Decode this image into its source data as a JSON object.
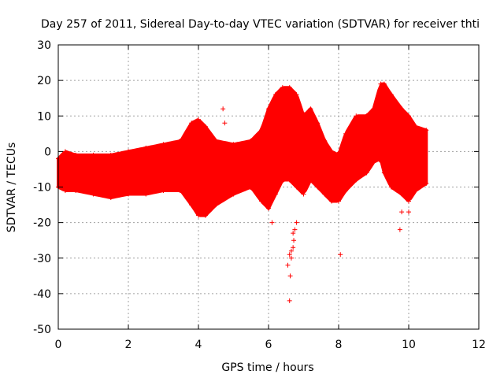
{
  "chart_data": {
    "type": "scatter",
    "title": "Day 257 of 2011, Sidereal Day-to-day VTEC variation (SDTVAR) for receiver thti",
    "xlabel": "GPS time / hours",
    "ylabel": "SDTVAR / TECUs",
    "xlim": [
      0,
      12
    ],
    "ylim": [
      -50,
      30
    ],
    "xticks": [
      0,
      2,
      4,
      6,
      8,
      10,
      12
    ],
    "yticks": [
      -50,
      -40,
      -30,
      -20,
      -10,
      0,
      10,
      20,
      30
    ],
    "xtick_labels": [
      "0",
      "2",
      "4",
      "6",
      "8",
      "10",
      "12"
    ],
    "ytick_labels": [
      "-50",
      "-40",
      "-30",
      "-20",
      "-10",
      "0",
      "10",
      "20",
      "30"
    ],
    "grid": true,
    "marker": "+",
    "color": "#ff0000",
    "series": [
      {
        "name": "upper envelope",
        "x": [
          0.0,
          0.2,
          0.5,
          1.0,
          1.5,
          2.0,
          2.5,
          3.0,
          3.5,
          3.8,
          4.0,
          4.2,
          4.5,
          5.0,
          5.5,
          5.8,
          6.0,
          6.2,
          6.4,
          6.6,
          6.8,
          7.0,
          7.2,
          7.4,
          7.6,
          7.8,
          8.0,
          8.2,
          8.5,
          8.8,
          9.0,
          9.2,
          9.3,
          9.5,
          9.8,
          10.0,
          10.2,
          10.5
        ],
        "values": [
          -2,
          0,
          -1,
          -1,
          -1,
          0,
          1,
          2,
          3,
          8,
          9,
          7,
          3,
          2,
          3,
          6,
          12,
          16,
          18,
          18,
          16,
          10,
          12,
          8,
          3,
          0,
          -1,
          5,
          10,
          10,
          12,
          19,
          19,
          16,
          12,
          10,
          7,
          6
        ]
      },
      {
        "name": "lower envelope",
        "x": [
          0.0,
          0.2,
          0.5,
          1.0,
          1.5,
          2.0,
          2.5,
          3.0,
          3.5,
          3.8,
          4.0,
          4.2,
          4.5,
          5.0,
          5.5,
          5.8,
          6.0,
          6.2,
          6.4,
          6.6,
          6.8,
          7.0,
          7.2,
          7.4,
          7.6,
          7.8,
          8.0,
          8.2,
          8.5,
          8.8,
          9.0,
          9.2,
          9.3,
          9.5,
          9.8,
          10.0,
          10.2,
          10.5
        ],
        "values": [
          -10,
          -11,
          -11,
          -12,
          -13,
          -12,
          -12,
          -11,
          -11,
          -15,
          -18,
          -18,
          -15,
          -12,
          -10,
          -14,
          -16,
          -12,
          -8,
          -8,
          -10,
          -12,
          -8,
          -10,
          -12,
          -14,
          -14,
          -11,
          -8,
          -6,
          -3,
          -2,
          -6,
          -10,
          -12,
          -14,
          -11,
          -9
        ]
      },
      {
        "name": "outliers",
        "x": [
          6.55,
          6.6,
          6.62,
          6.65,
          6.7,
          6.72,
          6.75,
          6.8,
          6.6,
          6.65,
          6.7,
          8.05,
          9.75,
          9.8,
          10.0,
          6.1,
          4.7,
          4.75
        ],
        "values": [
          -32,
          -42,
          -35,
          -30,
          -27,
          -25,
          -22,
          -20,
          -29,
          -28,
          -23,
          -29,
          -22,
          -17,
          -17,
          -20,
          12,
          8
        ]
      }
    ]
  }
}
